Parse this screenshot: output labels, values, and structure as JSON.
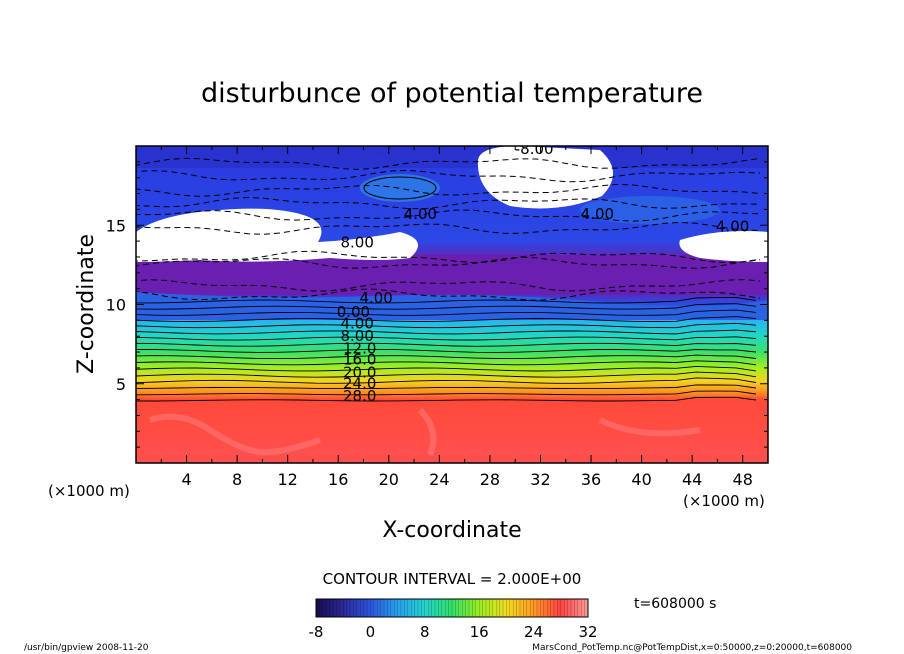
{
  "chart_data": {
    "type": "heatmap",
    "title": "disturbunce of potential temperature",
    "xlabel": "X-coordinate",
    "ylabel": "Z-coordinate",
    "x_unit": "(×1000 m)",
    "y_unit": "(×1000 m)",
    "xlim": [
      0,
      50
    ],
    "ylim": [
      0,
      20
    ],
    "x_ticks": [
      4,
      8,
      12,
      16,
      20,
      24,
      28,
      32,
      36,
      40,
      44,
      48
    ],
    "y_ticks": [
      5,
      10,
      15
    ],
    "contour_interval_label": "CONTOUR INTERVAL = 2.000E+00",
    "time_label": "t=608000 s",
    "colorbar": {
      "min": -8,
      "max": 32,
      "ticks": [
        -8,
        0,
        8,
        16,
        24,
        32
      ],
      "colors": [
        "#1a0a4a",
        "#2a2a9a",
        "#2a55dd",
        "#2aa0ee",
        "#22d4cc",
        "#33e066",
        "#99ee22",
        "#eedd22",
        "#ff9922",
        "#ff4444",
        "#ff9999"
      ]
    },
    "contour_labels": [
      {
        "text": "-8.00",
        "x": 31.5,
        "z": 19.5
      },
      {
        "text": "4.00",
        "x": 22.5,
        "z": 15.4
      },
      {
        "text": "4.00",
        "x": 36.5,
        "z": 15.4
      },
      {
        "text": "4.00",
        "x": 47.2,
        "z": 14.6
      },
      {
        "text": "8.00",
        "x": 17.5,
        "z": 13.6
      },
      {
        "text": "4.00",
        "x": 19.0,
        "z": 10.1
      },
      {
        "text": "0.00",
        "x": 17.2,
        "z": 9.2
      },
      {
        "text": "4.00",
        "x": 17.5,
        "z": 8.5
      },
      {
        "text": "8.00",
        "x": 17.5,
        "z": 7.7
      },
      {
        "text": "12.0",
        "x": 17.7,
        "z": 6.9
      },
      {
        "text": "16.0",
        "x": 17.7,
        "z": 6.2
      },
      {
        "text": "20.0",
        "x": 17.7,
        "z": 5.4
      },
      {
        "text": "24.0",
        "x": 17.7,
        "z": 4.7
      },
      {
        "text": "28.0",
        "x": 17.7,
        "z": 3.9
      }
    ],
    "footer_left": "/usr/bin/gpview   2008-11-20",
    "footer_right": "MarsCond_PotTemp.nc@PotTempDist,x=0:50000,z=0:20000,t=608000"
  }
}
